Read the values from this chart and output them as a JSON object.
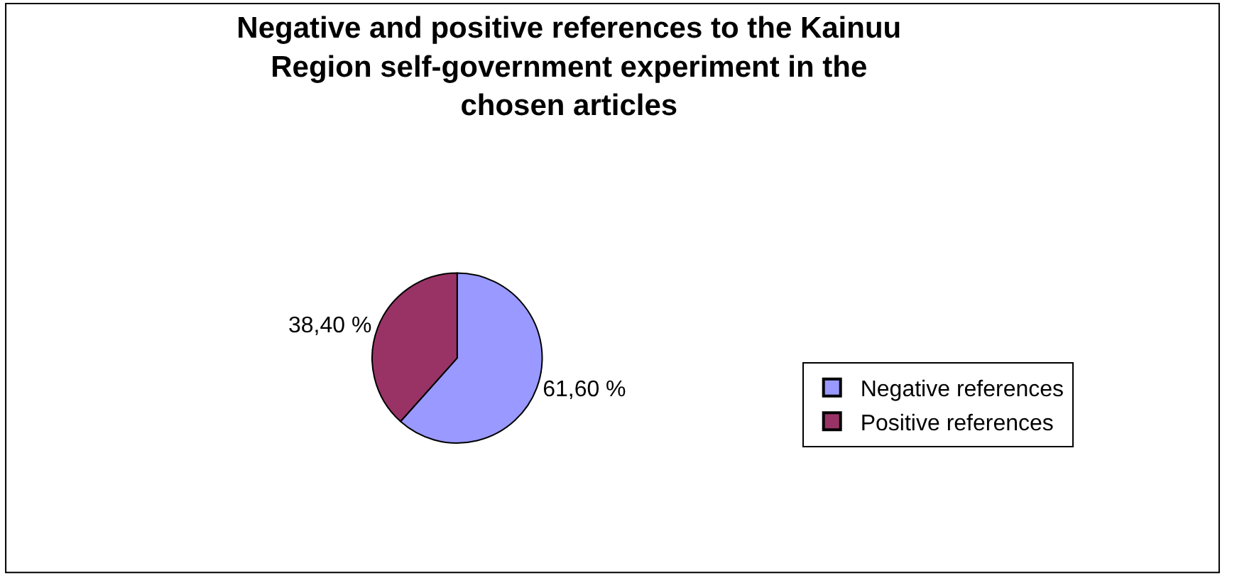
{
  "chart_data": {
    "type": "pie",
    "title": "Negative and positive references to the Kainuu Region self-government experiment in the chosen articles",
    "categories": [
      "Negative references",
      "Positive references"
    ],
    "values": [
      61.6,
      38.4
    ],
    "value_labels": [
      "61,60 %",
      "38,40 %"
    ],
    "colors": [
      "#9999ff",
      "#993366"
    ],
    "legend": "right"
  }
}
